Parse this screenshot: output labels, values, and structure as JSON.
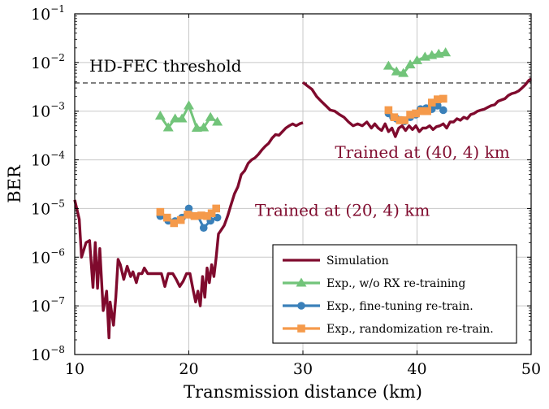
{
  "chart_data": {
    "type": "line",
    "ylabel": "BER",
    "xlabel": "Transmission distance (km)",
    "xlim": [
      10,
      50
    ],
    "ylim": [
      1e-08,
      0.1
    ],
    "yscale": "log",
    "grid": true,
    "legend_position": "bottom-right",
    "x_ticks": [
      10,
      20,
      30,
      40,
      50
    ],
    "y_ticks": [
      {
        "value": 1e-08,
        "base": "10",
        "exp": "−8"
      },
      {
        "value": 1e-07,
        "base": "10",
        "exp": "−7"
      },
      {
        "value": 1e-06,
        "base": "10",
        "exp": "−6"
      },
      {
        "value": 1e-05,
        "base": "10",
        "exp": "−5"
      },
      {
        "value": 0.0001,
        "base": "10",
        "exp": "−4"
      },
      {
        "value": 0.001,
        "base": "10",
        "exp": "−3"
      },
      {
        "value": 0.01,
        "base": "10",
        "exp": "−2"
      },
      {
        "value": 0.1,
        "base": "10",
        "exp": "−1"
      }
    ],
    "threshold": {
      "label": "HD-FEC threshold",
      "value": 0.0038
    },
    "annotations": [
      {
        "text": "Trained at (20, 4) km",
        "x": 25.8,
        "y": 7e-06,
        "color": "#7f0a2d"
      },
      {
        "text": "Trained at (40, 4) km",
        "x": 32.8,
        "y": 0.00011,
        "color": "#7f0a2d"
      }
    ],
    "series": [
      {
        "name": "Simulation",
        "color": "#7f0a2d",
        "marker": "none",
        "segments": [
          {
            "x": [
              10.0,
              10.4,
              10.6,
              11.0,
              11.3,
              11.6,
              11.8,
              12.0,
              12.2,
              12.5,
              12.8,
              13.0,
              13.1,
              13.4,
              13.6,
              13.8,
              14.0,
              14.3,
              14.6,
              14.9,
              15.1,
              15.4,
              15.6,
              15.9,
              16.1,
              16.4,
              16.8,
              17.2,
              17.6,
              17.9,
              18.2,
              18.6,
              18.9,
              19.2,
              19.5,
              19.8,
              20.1,
              20.4,
              20.6,
              20.8,
              21.0,
              21.2,
              21.4,
              21.6,
              21.8,
              22.0,
              22.2,
              22.4,
              22.6,
              22.8,
              23.1,
              23.4,
              23.7,
              24.0,
              24.3,
              24.6,
              24.9,
              25.2,
              25.5,
              25.8,
              26.1,
              26.4,
              26.7,
              27.0,
              27.3,
              27.6,
              27.9,
              28.2,
              28.5,
              28.8,
              29.1,
              29.4,
              29.7,
              30.0
            ],
            "y": [
              1.5e-05,
              6e-06,
              1e-06,
              2e-06,
              2.2e-06,
              2.4e-07,
              2e-06,
              2.3e-07,
              1.5e-06,
              8e-08,
              2e-07,
              2.2e-08,
              1.2e-07,
              4e-08,
              1.5e-07,
              9e-07,
              7e-07,
              3.5e-07,
              6.5e-07,
              4e-07,
              5e-07,
              3e-07,
              4.6e-07,
              4.6e-07,
              6e-07,
              4.6e-07,
              4.6e-07,
              4.6e-07,
              4.6e-07,
              2.5e-07,
              4.6e-07,
              4.6e-07,
              3.5e-07,
              2.5e-07,
              3.2e-07,
              4.6e-07,
              4.6e-07,
              2e-07,
              1.2e-07,
              2e-07,
              1e-07,
              4e-07,
              1.5e-07,
              6e-07,
              3e-07,
              7e-07,
              4e-07,
              1e-06,
              3e-06,
              3.5e-06,
              4.5e-06,
              7e-06,
              1.2e-05,
              2e-05,
              2.8e-05,
              5e-05,
              6e-05,
              8.5e-05,
              0.0001,
              0.00011,
              0.00013,
              0.00016,
              0.00019,
              0.00022,
              0.00028,
              0.00033,
              0.00032,
              0.00038,
              0.00045,
              0.0005,
              0.00055,
              0.0005,
              0.00055,
              0.00058
            ]
          },
          {
            "x": [
              30.0,
              30.4,
              30.8,
              31.2,
              31.6,
              32.0,
              32.4,
              32.8,
              33.2,
              33.6,
              34.0,
              34.4,
              34.8,
              35.2,
              35.6,
              36.0,
              36.3,
              36.6,
              36.9,
              37.2,
              37.5,
              37.8,
              38.1,
              38.4,
              38.7,
              39.0,
              39.3,
              39.6,
              39.9,
              40.2,
              40.5,
              40.8,
              41.1,
              41.4,
              41.7,
              42.0,
              42.3,
              42.6,
              42.9,
              43.2,
              43.5,
              43.8,
              44.1,
              44.4,
              44.7,
              45.0,
              45.3,
              45.6,
              45.9,
              46.2,
              46.5,
              46.8,
              47.1,
              47.4,
              47.7,
              48.0,
              48.3,
              48.6,
              48.9,
              49.2,
              49.5,
              49.8,
              50.0
            ],
            "y": [
              0.0039,
              0.0033,
              0.0028,
              0.002,
              0.0016,
              0.0013,
              0.00105,
              0.001,
              0.00085,
              0.00075,
              0.0006,
              0.0005,
              0.00055,
              0.0005,
              0.0006,
              0.00045,
              0.00055,
              0.00045,
              0.0004,
              0.00055,
              0.00038,
              0.00045,
              0.0003,
              0.00045,
              0.0005,
              0.0004,
              0.0005,
              0.00042,
              0.0005,
              0.00038,
              0.00045,
              0.00045,
              0.0005,
              0.00042,
              0.00048,
              0.0005,
              0.00055,
              0.00045,
              0.0006,
              0.0006,
              0.0007,
              0.00065,
              0.00075,
              0.0007,
              0.00085,
              0.0009,
              0.001,
              0.00105,
              0.0011,
              0.0012,
              0.0013,
              0.00135,
              0.0016,
              0.0017,
              0.0018,
              0.0021,
              0.0023,
              0.0024,
              0.0026,
              0.003,
              0.0035,
              0.0043,
              0.0046
            ]
          }
        ]
      },
      {
        "name": "Exp., w/o RX re-training",
        "color": "#72c47a",
        "marker": "triangle",
        "segments": [
          {
            "x": [
              17.5,
              18.2,
              18.8,
              19.4,
              20.0,
              20.7,
              21.3,
              21.9,
              22.5
            ],
            "y": [
              0.0008,
              0.00046,
              0.0007,
              0.0007,
              0.0013,
              0.00045,
              0.00046,
              0.00075,
              0.0006
            ]
          },
          {
            "x": [
              37.5,
              38.2,
              38.8,
              39.4,
              40.0,
              40.7,
              41.3,
              41.9,
              42.5
            ],
            "y": [
              0.0085,
              0.0065,
              0.006,
              0.009,
              0.011,
              0.013,
              0.014,
              0.015,
              0.016
            ]
          }
        ]
      },
      {
        "name": "Exp., fine-tuning re-train.",
        "color": "#3a80b9",
        "marker": "circle",
        "segments": [
          {
            "x": [
              17.5,
              18.2,
              18.8,
              19.4,
              20.0,
              20.4,
              20.8,
              21.3,
              21.9,
              22.5
            ],
            "y": [
              7e-06,
              5.6e-06,
              5.5e-06,
              6.5e-06,
              1e-05,
              7e-06,
              7e-06,
              4e-06,
              5.6e-06,
              6.5e-06
            ]
          },
          {
            "x": [
              37.5,
              37.9,
              38.2,
              38.6,
              38.9,
              39.4,
              39.9,
              40.3,
              40.8,
              41.3,
              41.8,
              42.3
            ],
            "y": [
              0.0009,
              0.00075,
              0.0007,
              0.00066,
              0.00062,
              0.00075,
              0.00085,
              0.0011,
              0.00115,
              0.0011,
              0.0013,
              0.00105
            ]
          }
        ]
      },
      {
        "name": "Exp., randomization re-train.",
        "color": "#f59a4b",
        "marker": "square",
        "segments": [
          {
            "x": [
              17.5,
              18.1,
              18.7,
              19.3,
              19.9,
              20.5,
              21.1,
              21.6,
              22.0,
              22.4
            ],
            "y": [
              8.5e-06,
              6.5e-06,
              5e-06,
              5.8e-06,
              7.5e-06,
              7e-06,
              7.2e-06,
              7e-06,
              8e-06,
              1e-05
            ]
          },
          {
            "x": [
              37.5,
              38.0,
              38.5,
              38.9,
              39.4,
              39.9,
              40.4,
              40.9,
              41.3,
              41.8,
              42.3
            ],
            "y": [
              0.00105,
              0.00075,
              0.00065,
              0.00065,
              0.00085,
              0.0009,
              0.001,
              0.001,
              0.0015,
              0.00175,
              0.0018
            ]
          }
        ]
      }
    ]
  }
}
